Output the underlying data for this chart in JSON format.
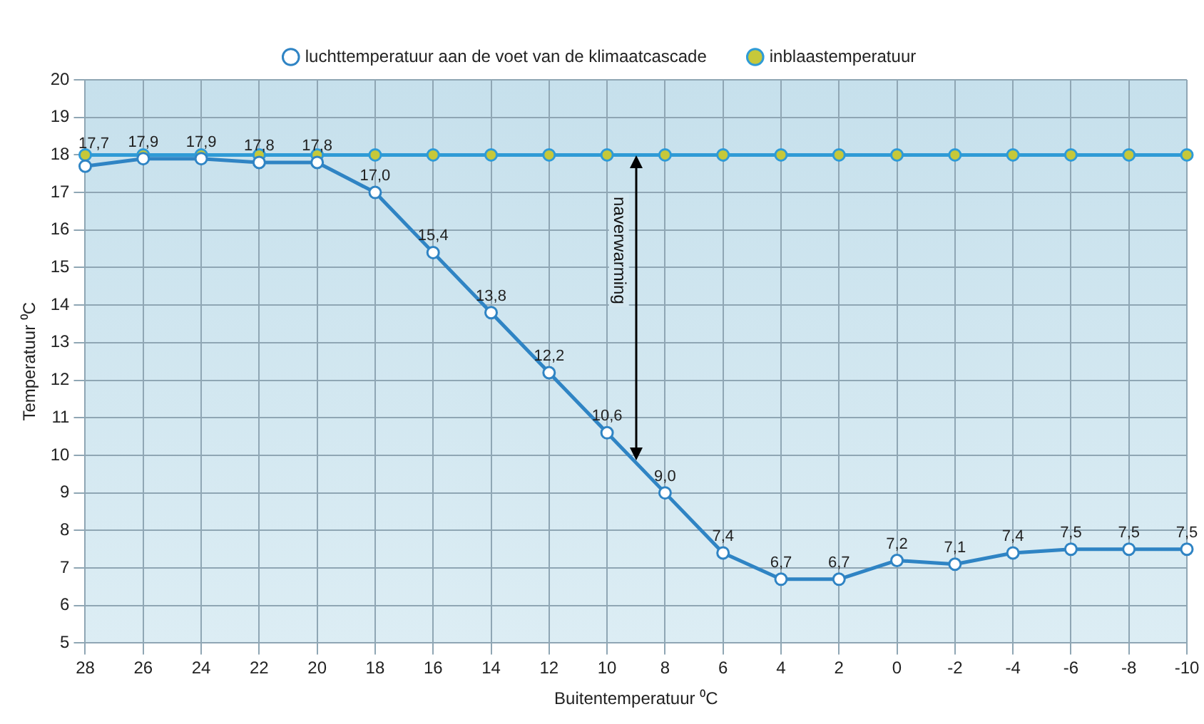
{
  "chart_data": {
    "type": "line",
    "xlabel": "Buitentemperatuur ⁰C",
    "ylabel": "Temperatuur ⁰C",
    "categories": [
      "28",
      "26",
      "24",
      "22",
      "20",
      "18",
      "16",
      "14",
      "12",
      "10",
      "8",
      "6",
      "4",
      "2",
      "0",
      "-2",
      "-4",
      "-6",
      "-8",
      "-10"
    ],
    "series": [
      {
        "name": "luchttemperatuur aan de voet van de klimaatcascade",
        "color": "#2f84c4",
        "values": [
          17.7,
          17.9,
          17.9,
          17.8,
          17.8,
          17.0,
          15.4,
          13.8,
          12.2,
          10.6,
          9.0,
          7.4,
          6.7,
          6.7,
          7.2,
          7.1,
          7.4,
          7.5,
          7.5,
          7.5
        ],
        "value_labels": [
          "17,7",
          "17,9",
          "17,9",
          "17,8",
          "17,8",
          "17,0",
          "15,4",
          "13,8",
          "12,2",
          "10,6",
          "9,0",
          "7,4",
          "6,7",
          "6,7",
          "7,2",
          "7,1",
          "7,4",
          "7,5",
          "7,5",
          "7,5"
        ]
      },
      {
        "name": "inblaastemperatuur",
        "color": "#2f9bd6",
        "values": [
          18,
          18,
          18,
          18,
          18,
          18,
          18,
          18,
          18,
          18,
          18,
          18,
          18,
          18,
          18,
          18,
          18,
          18,
          18,
          18
        ]
      }
    ],
    "ylim": [
      5,
      20
    ],
    "yticks": [
      5,
      6,
      7,
      8,
      9,
      10,
      11,
      12,
      13,
      14,
      15,
      16,
      17,
      18,
      19,
      20
    ],
    "grid": true,
    "legend": "top",
    "marker": "circle",
    "annotations": [
      "naverwarming"
    ]
  }
}
